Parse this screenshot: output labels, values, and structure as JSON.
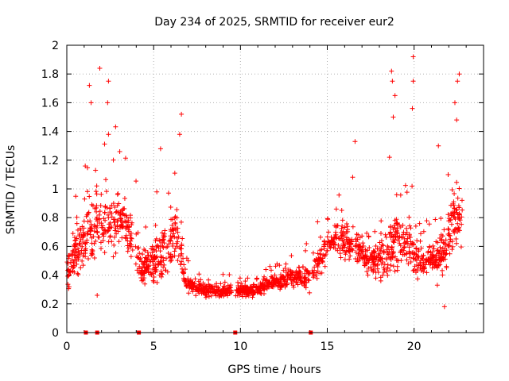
{
  "chart_data": {
    "type": "scatter",
    "title": "Day 234 of 2025, SRMTID for receiver eur2",
    "xlabel": "GPS time / hours",
    "ylabel": "SRMTID / TECUs",
    "xlim": [
      0,
      24
    ],
    "ylim": [
      0,
      2
    ],
    "xticks": [
      0,
      5,
      10,
      15,
      20
    ],
    "yticks": [
      0,
      0.2,
      0.4,
      0.6,
      0.8,
      1,
      1.2,
      1.4,
      1.6,
      1.8,
      2
    ],
    "xtick_labels": [
      "0",
      "5",
      "10",
      "15",
      "20"
    ],
    "ytick_labels": [
      "0",
      "0.2",
      "0.4",
      "0.6",
      "0.8",
      "1",
      "1.2",
      "1.4",
      "1.6",
      "1.8",
      "2"
    ],
    "grid": true,
    "marker": "+",
    "marker_color": "#ff0000",
    "point_count": 1800,
    "envelope": {
      "x": [
        0,
        0.3,
        0.8,
        1.3,
        1.8,
        2.3,
        2.8,
        3.3,
        3.8,
        4.3,
        4.8,
        5.3,
        5.8,
        6.3,
        6.8,
        7.3,
        7.8,
        8.3,
        8.8,
        9.3,
        9.8,
        10.3,
        10.8,
        11.3,
        11.8,
        12.3,
        12.8,
        13.3,
        13.8,
        14.3,
        14.8,
        15.3,
        15.8,
        16.3,
        16.8,
        17.3,
        17.8,
        18.3,
        18.8,
        19.3,
        19.8,
        20.3,
        20.8,
        21.3,
        21.8,
        22.3,
        22.8
      ],
      "median": [
        0.4,
        0.5,
        0.6,
        0.7,
        0.75,
        0.8,
        0.75,
        0.8,
        0.65,
        0.45,
        0.45,
        0.55,
        0.6,
        0.75,
        0.35,
        0.32,
        0.3,
        0.3,
        0.28,
        0.3,
        0.3,
        0.28,
        0.3,
        0.32,
        0.35,
        0.35,
        0.38,
        0.4,
        0.4,
        0.45,
        0.55,
        0.65,
        0.65,
        0.6,
        0.6,
        0.5,
        0.5,
        0.55,
        0.6,
        0.65,
        0.6,
        0.5,
        0.5,
        0.5,
        0.55,
        0.8,
        0.8
      ],
      "spread": [
        0.25,
        0.25,
        0.3,
        0.35,
        0.45,
        0.4,
        0.35,
        0.3,
        0.3,
        0.2,
        0.2,
        0.3,
        0.35,
        0.35,
        0.1,
        0.08,
        0.08,
        0.08,
        0.08,
        0.08,
        0.08,
        0.08,
        0.08,
        0.08,
        0.1,
        0.1,
        0.12,
        0.12,
        0.15,
        0.2,
        0.2,
        0.2,
        0.25,
        0.25,
        0.2,
        0.15,
        0.2,
        0.3,
        0.35,
        0.3,
        0.3,
        0.2,
        0.2,
        0.2,
        0.3,
        0.35,
        0.3
      ]
    },
    "gaps": [
      [
        3.8,
        3.95
      ],
      [
        9.5,
        9.7
      ],
      [
        14.0,
        14.1
      ],
      [
        16.5,
        16.6
      ]
    ],
    "outliers": [
      {
        "x": 1.9,
        "y": 1.84
      },
      {
        "x": 1.3,
        "y": 1.72
      },
      {
        "x": 1.4,
        "y": 1.6
      },
      {
        "x": 2.4,
        "y": 1.75
      },
      {
        "x": 2.35,
        "y": 1.6
      },
      {
        "x": 2.4,
        "y": 1.38
      },
      {
        "x": 3.05,
        "y": 1.26
      },
      {
        "x": 6.6,
        "y": 1.52
      },
      {
        "x": 6.5,
        "y": 1.38
      },
      {
        "x": 5.4,
        "y": 1.28
      },
      {
        "x": 18.7,
        "y": 1.82
      },
      {
        "x": 18.75,
        "y": 1.75
      },
      {
        "x": 18.9,
        "y": 1.65
      },
      {
        "x": 18.8,
        "y": 1.5
      },
      {
        "x": 19.95,
        "y": 1.92
      },
      {
        "x": 19.95,
        "y": 1.75
      },
      {
        "x": 19.9,
        "y": 1.56
      },
      {
        "x": 22.6,
        "y": 1.8
      },
      {
        "x": 22.5,
        "y": 1.75
      },
      {
        "x": 22.35,
        "y": 1.6
      },
      {
        "x": 22.45,
        "y": 1.48
      },
      {
        "x": 16.6,
        "y": 1.33
      },
      {
        "x": 21.4,
        "y": 1.3
      },
      {
        "x": 1.75,
        "y": 0.26
      },
      {
        "x": 21.75,
        "y": 0.18
      }
    ],
    "baseline_markers": [
      1.1,
      1.75,
      4.15,
      9.7,
      14.05
    ]
  }
}
